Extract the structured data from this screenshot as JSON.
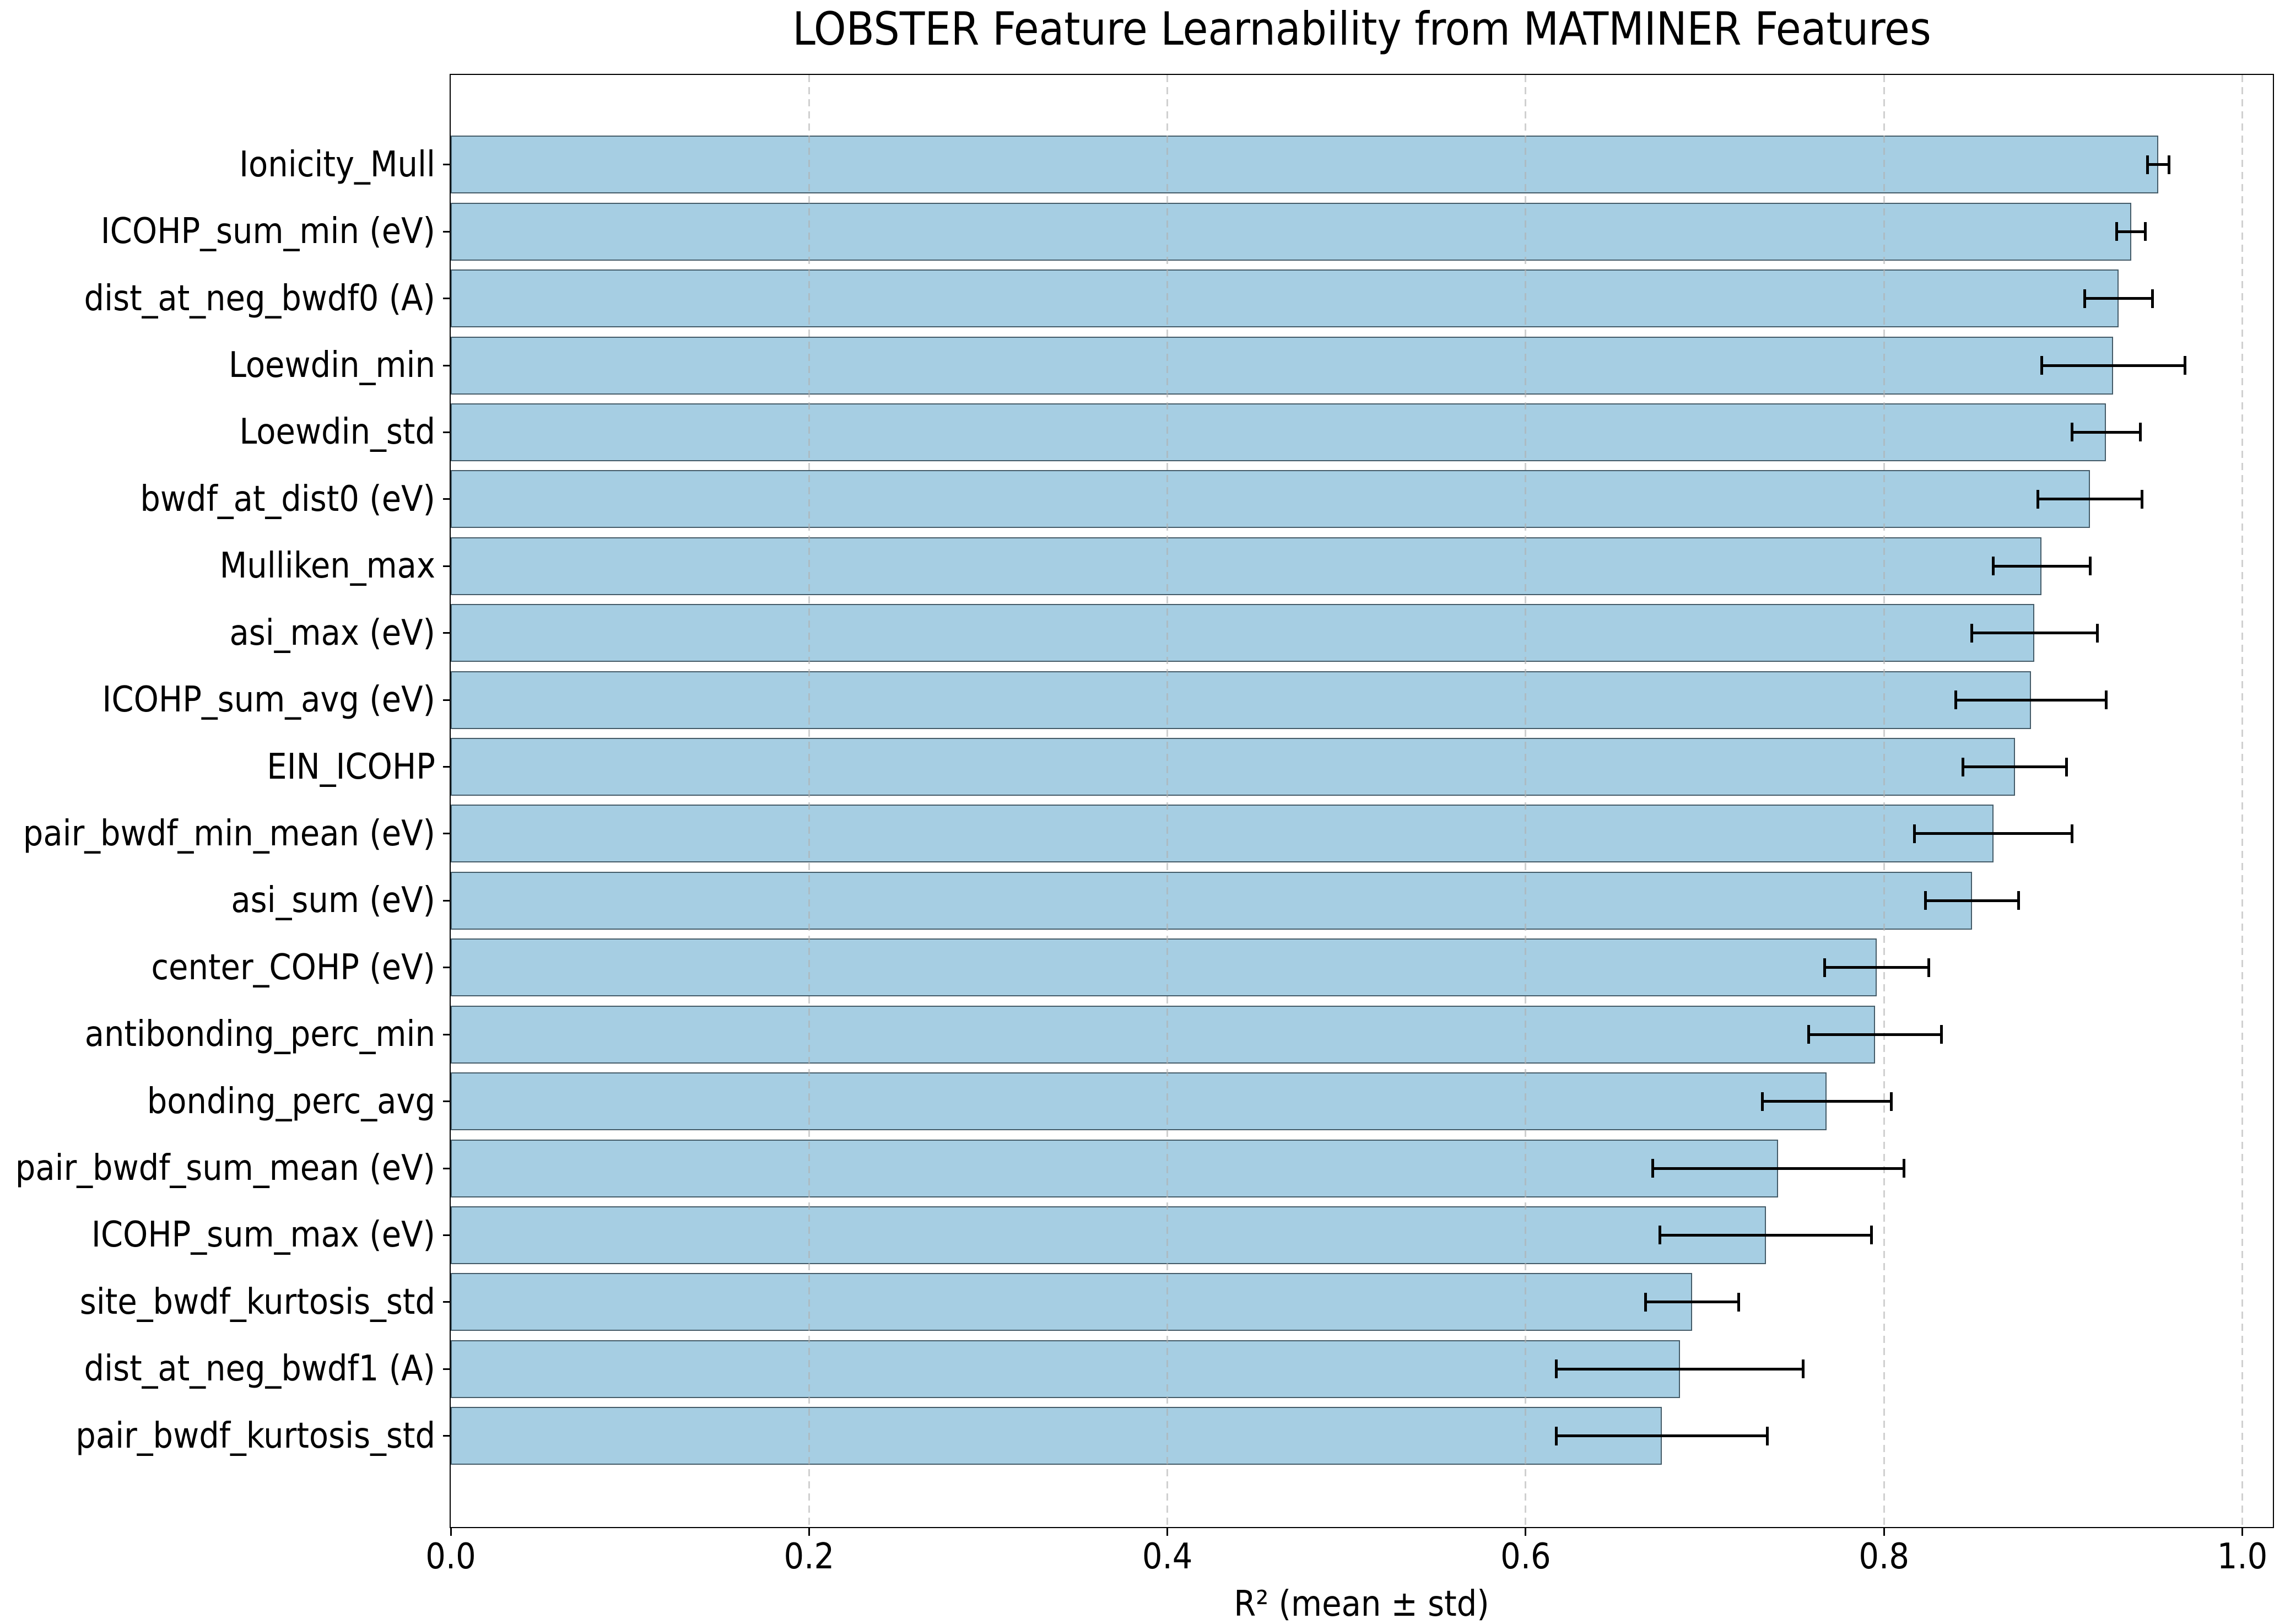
{
  "chart_data": {
    "type": "bar",
    "orientation": "horizontal",
    "title": "LOBSTER Feature Learnability from MATMINER Features",
    "xlabel": "R² (mean ± std)",
    "ylabel": "",
    "xlim": [
      0.0,
      1.017
    ],
    "xticks": [
      0.0,
      0.2,
      0.4,
      0.6,
      0.8,
      1.0
    ],
    "xtick_labels": [
      "0.0",
      "0.2",
      "0.4",
      "0.6",
      "0.8",
      "1.0"
    ],
    "grid": "vertical dashed lines at x ticks, drawn over bars",
    "legend": "none",
    "categories": [
      "Ionicity_Mull",
      "ICOHP_sum_min (eV)",
      "dist_at_neg_bwdf0 (A)",
      "Loewdin_min",
      "Loewdin_std",
      "bwdf_at_dist0 (eV)",
      "Mulliken_max",
      "asi_max (eV)",
      "ICOHP_sum_avg (eV)",
      "EIN_ICOHP",
      "pair_bwdf_min_mean (eV)",
      "asi_sum (eV)",
      "center_COHP (eV)",
      "antibonding_perc_min",
      "bonding_perc_avg",
      "pair_bwdf_sum_mean (eV)",
      "ICOHP_sum_max (eV)",
      "site_bwdf_kurtosis_std",
      "dist_at_neg_bwdf1 (A)",
      "pair_bwdf_kurtosis_std"
    ],
    "values": [
      0.953,
      0.938,
      0.931,
      0.928,
      0.924,
      0.915,
      0.888,
      0.884,
      0.882,
      0.873,
      0.861,
      0.849,
      0.796,
      0.795,
      0.768,
      0.741,
      0.734,
      0.693,
      0.686,
      0.676
    ],
    "errors": [
      0.006,
      0.008,
      0.019,
      0.04,
      0.019,
      0.029,
      0.027,
      0.035,
      0.042,
      0.029,
      0.044,
      0.026,
      0.029,
      0.037,
      0.036,
      0.07,
      0.059,
      0.026,
      0.069,
      0.059
    ],
    "colors": {
      "bar_fill": "#a6cee3",
      "bar_edge": "#23343f",
      "error_bar": "#000000",
      "grid_line": "#b0b0b0",
      "text": "#000000",
      "background": "#ffffff"
    }
  }
}
